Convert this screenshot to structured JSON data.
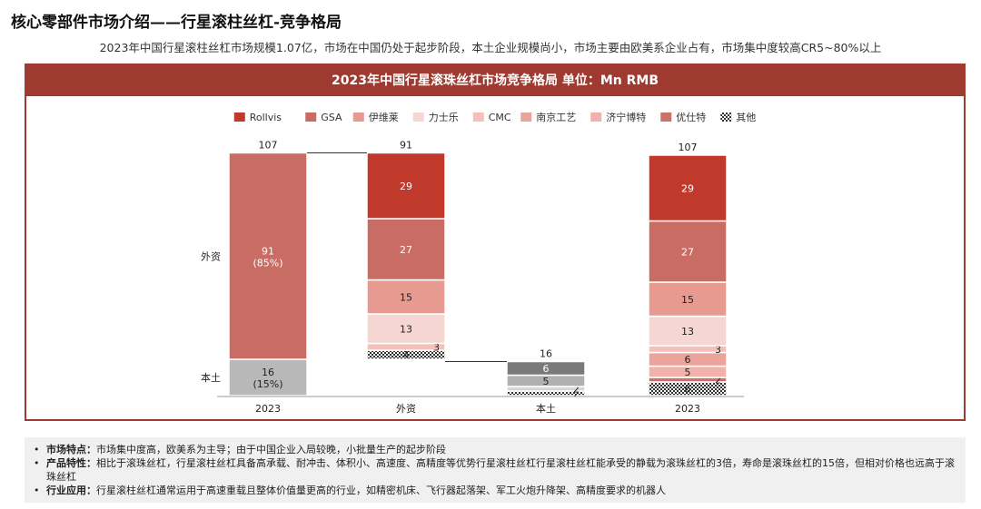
{
  "page": {
    "title": "核心零部件市场介绍——行星滚柱丝杠-竞争格局",
    "subtitle": "2023年中国行星滚柱丝杠市场规模1.07亿，市场在中国仍处于起步阶段，本土企业规模尚小，市场主要由欧美系企业占有，市场集中度较高CR5~80%以上"
  },
  "chart_data": {
    "type": "bar",
    "title": "2023年中国行星滚珠丝杠市场竞争格局  单位：Mn RMB",
    "legend": [
      "Rollvis",
      "GSA",
      "伊维莱",
      "力士乐",
      "CMC",
      "南京工艺",
      "济宁博特",
      "优仕特",
      "其他"
    ],
    "legend_position": "top",
    "categories": [
      "2023",
      "外资",
      "本土",
      "2023"
    ],
    "row_labels": [
      "外资",
      "本土"
    ],
    "bars": [
      {
        "category": "2023",
        "total": 107,
        "segments": [
          {
            "name": "外资",
            "value": 91,
            "label": "91",
            "sublabel": "(85%)"
          },
          {
            "name": "本土",
            "value": 16,
            "label": "16",
            "sublabel": "(15%)"
          }
        ]
      },
      {
        "category": "外资",
        "total": 91,
        "segments": [
          {
            "name": "Rollvis",
            "value": 29,
            "label": "29"
          },
          {
            "name": "GSA",
            "value": 27,
            "label": "27"
          },
          {
            "name": "伊维莱",
            "value": 15,
            "label": "15"
          },
          {
            "name": "力士乐",
            "value": 13,
            "label": "13"
          },
          {
            "name": "CMC",
            "value": 3,
            "label": "3"
          },
          {
            "name": "其他",
            "value": 4,
            "label": "4"
          }
        ]
      },
      {
        "category": "本土",
        "total": 16,
        "segments": [
          {
            "name": "南京工艺",
            "value": 6,
            "label": "6"
          },
          {
            "name": "济宁博特",
            "value": 5,
            "label": "5"
          },
          {
            "name": "优仕特",
            "value": 2,
            "label": "2"
          },
          {
            "name": "其他",
            "value": 2,
            "label": "2"
          }
        ]
      },
      {
        "category": "2023",
        "total": 107,
        "segments": [
          {
            "name": "Rollvis",
            "value": 29,
            "label": "29"
          },
          {
            "name": "GSA",
            "value": 27,
            "label": "27"
          },
          {
            "name": "伊维莱",
            "value": 15,
            "label": "15"
          },
          {
            "name": "力士乐",
            "value": 13,
            "label": "13"
          },
          {
            "name": "CMC",
            "value": 3,
            "label": "3"
          },
          {
            "name": "南京工艺",
            "value": 6,
            "label": "6"
          },
          {
            "name": "济宁博特",
            "value": 5,
            "label": "5"
          },
          {
            "name": "优仕特",
            "value": 2,
            "label": "2"
          },
          {
            "name": "其他",
            "value": 6,
            "label": "6"
          }
        ]
      }
    ],
    "colors": {
      "Rollvis": "#c0392b",
      "GSA": "#c86c64",
      "伊维莱": "#e79a90",
      "力士乐": "#f6d6d2",
      "CMC": "#f4c0b8",
      "南京工艺": "#eba49b",
      "济宁博特": "#f0b2aa",
      "优仕特": "#cd7168",
      "其他": "pattern",
      "外资": "#c86c64",
      "本土": "#b8b8b8",
      "本土-南京工艺": "#7a7a7a",
      "本土-济宁博特": "#b0b0b0",
      "本土-优仕特": "#d6d6d6",
      "header": "#9e3a30"
    }
  },
  "notes": [
    {
      "label": "市场特点：",
      "text": "市场集中度高，欧美系为主导；由于中国企业入局较晚，小批量生产的起步阶段"
    },
    {
      "label": "产品特性：",
      "text": "相比于滚珠丝杠，行星滚柱丝杠具备高承载、耐冲击、体积小、高速度、高精度等优势行星滚柱丝杠行星滚柱丝杠能承受的静载为滚珠丝杠的3倍，寿命是滚珠丝杠的15倍，但相对价格也远高于滚珠丝杠"
    },
    {
      "label": "行业应用：",
      "text": "行星滚柱丝杠通常运用于高速重载且整体价值量更高的行业，如精密机床、飞行器起落架、军工火炮升降架、高精度要求的机器人"
    }
  ]
}
